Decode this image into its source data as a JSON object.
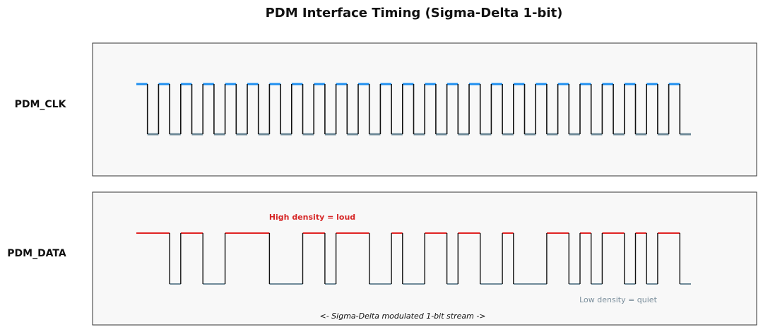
{
  "title": "PDM Interface Timing (Sigma-Delta 1-bit)",
  "signals": {
    "clk_label": "PDM_CLK",
    "data_label": "PDM_DATA"
  },
  "annotations": {
    "high_density": "High density = loud",
    "low_density": "Low density = quiet",
    "stream": "<- Sigma-Delta modulated 1-bit stream ->"
  },
  "colors": {
    "clk_high": "#1f8ff0",
    "clk_low": "#6f8a99",
    "data_high": "#e02424",
    "data_low": "#6f8a99",
    "edge": "#111111"
  },
  "chart_data": {
    "type": "timing",
    "clk": {
      "cycles": 25,
      "pattern": "1,0 alternating each half-cycle"
    },
    "data_bits": [
      1,
      1,
      1,
      1,
      0,
      1,
      0,
      0,
      1,
      1,
      1,
      1,
      0,
      0,
      0,
      1,
      1,
      0,
      1,
      0,
      0,
      1,
      1,
      0,
      1,
      1,
      0,
      1,
      0,
      0,
      0,
      1,
      0,
      1,
      1,
      0,
      1,
      1,
      0,
      0,
      1,
      1,
      0,
      1,
      0,
      0,
      1,
      1,
      0,
      1,
      0
    ],
    "data_transitions_t": [
      0,
      3,
      4,
      6,
      8,
      12,
      15,
      17,
      18,
      21,
      23,
      24,
      26,
      28,
      29,
      31,
      33,
      34,
      37,
      39,
      40,
      41,
      42,
      44,
      45,
      46,
      47,
      49
    ],
    "data_start_level": 1,
    "t_max": 50
  }
}
